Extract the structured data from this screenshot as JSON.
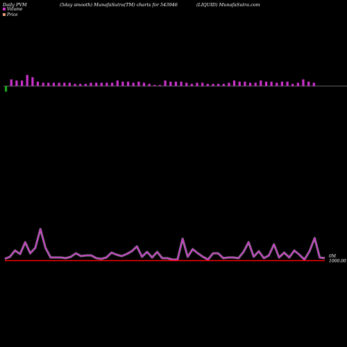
{
  "header": {
    "left": "Daily PVM",
    "center": "(5day smooth) MunafaSutra(TM) charts for 543946",
    "right": "(LIQUID) MunafaSutra.com"
  },
  "legend": [
    {
      "label": "Volume",
      "color": "#cc33cc"
    },
    {
      "label": "Price",
      "color": "#e8a07a"
    }
  ],
  "colors": {
    "bar": "#cc33cc",
    "bar_down": "#22aa22",
    "volume_line": "#cc33cc",
    "volume_line_glow": "#ffffff",
    "price_line": "#ff0000",
    "baseline": "#888888"
  },
  "y_labels": {
    "volume": "0M",
    "price": "1000.00"
  },
  "chart_data": [
    {
      "type": "bar",
      "name": "Volume",
      "values": [
        5,
        6,
        5,
        5,
        10,
        8,
        4,
        3,
        3,
        3,
        3,
        3,
        3,
        2,
        2,
        2,
        3,
        3,
        3,
        3,
        3,
        5,
        4,
        4,
        3,
        4,
        3,
        2,
        1,
        1,
        5,
        4,
        4,
        4,
        3,
        2,
        3,
        3,
        2,
        2,
        2,
        2,
        3,
        5,
        4,
        4,
        3,
        3,
        5,
        4,
        4,
        3,
        4,
        4,
        2,
        3,
        6,
        4,
        3
      ],
      "down_bars": [
        0
      ]
    },
    {
      "type": "line",
      "name": "Volume",
      "values": [
        2,
        5,
        14,
        9,
        26,
        10,
        18,
        45,
        18,
        4,
        4,
        4,
        3,
        5,
        10,
        6,
        7,
        7,
        3,
        2,
        4,
        11,
        8,
        6,
        9,
        13,
        20,
        5,
        12,
        4,
        12,
        3,
        3,
        1,
        1,
        31,
        5,
        16,
        10,
        5,
        1,
        10,
        10,
        3,
        4,
        4,
        3,
        12,
        26,
        5,
        13,
        3,
        7,
        23,
        4,
        11,
        4,
        14,
        8,
        1,
        13,
        32,
        4,
        3
      ]
    },
    {
      "type": "line",
      "name": "Price",
      "values": [
        1000,
        1000,
        1000,
        1000,
        1000,
        1000,
        1000,
        1000,
        1000,
        1000,
        1000,
        1000,
        1000,
        1000,
        1000,
        1000,
        1000,
        1000,
        1000,
        1000,
        1000,
        1000,
        1000,
        1000,
        1000,
        1000,
        1000,
        1000,
        1000,
        1000,
        1000,
        1000,
        1000,
        1000,
        1000,
        1000,
        1000,
        1000,
        1000,
        1000,
        1000,
        1000,
        1000,
        1000,
        1000,
        1000,
        1000,
        1000,
        1000,
        1000,
        1000,
        1000,
        1000,
        1000,
        1000,
        1000,
        1000,
        1000,
        1000,
        1000,
        1000,
        1000,
        1000,
        1000
      ]
    }
  ]
}
